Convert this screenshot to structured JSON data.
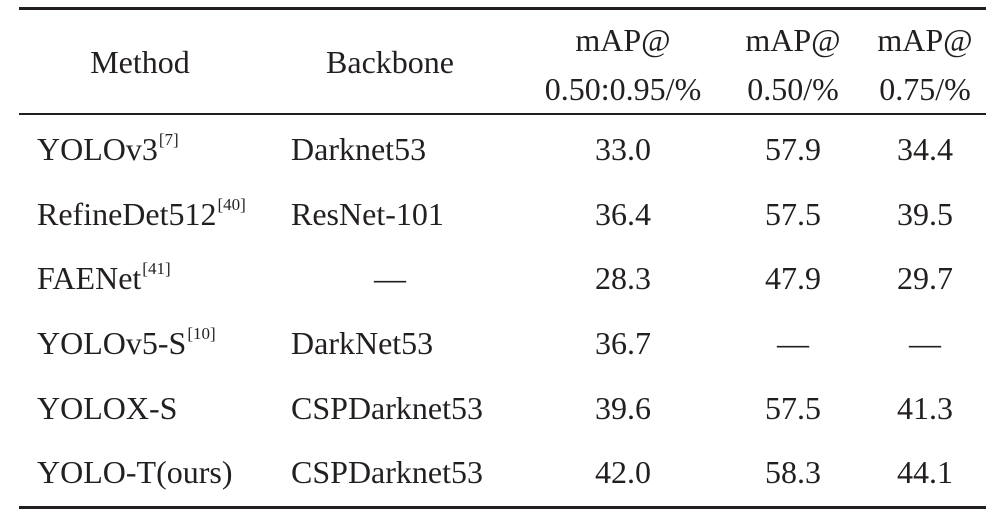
{
  "table": {
    "headers": [
      {
        "line1": "Method",
        "line2": ""
      },
      {
        "line1": "Backbone",
        "line2": ""
      },
      {
        "line1": "mAP@",
        "line2": "0.50:0.95/%"
      },
      {
        "line1": "mAP@",
        "line2": "0.50/%"
      },
      {
        "line1": "mAP@",
        "line2": "0.75/%"
      }
    ],
    "rows": [
      {
        "method": "YOLOv3",
        "ref": "[7]",
        "backbone": "Darknet53",
        "map_50_95": "33.0",
        "map_50": "57.9",
        "map_75": "34.4"
      },
      {
        "method": "RefineDet512",
        "ref": "[40]",
        "backbone": "ResNet-101",
        "map_50_95": "36.4",
        "map_50": "57.5",
        "map_75": "39.5"
      },
      {
        "method": "FAENet",
        "ref": "[41]",
        "backbone": "—",
        "map_50_95": "28.3",
        "map_50": "47.9",
        "map_75": "29.7"
      },
      {
        "method": "YOLOv5-S",
        "ref": "[10]",
        "backbone": "DarkNet53",
        "map_50_95": "36.7",
        "map_50": "—",
        "map_75": "—"
      },
      {
        "method": "YOLOX-S",
        "ref": "",
        "backbone": "CSPDarknet53",
        "map_50_95": "39.6",
        "map_50": "57.5",
        "map_75": "41.3"
      },
      {
        "method": "YOLO-T(ours)",
        "ref": "",
        "backbone": "CSPDarknet53",
        "map_50_95": "42.0",
        "map_50": "58.3",
        "map_75": "44.1"
      }
    ]
  }
}
